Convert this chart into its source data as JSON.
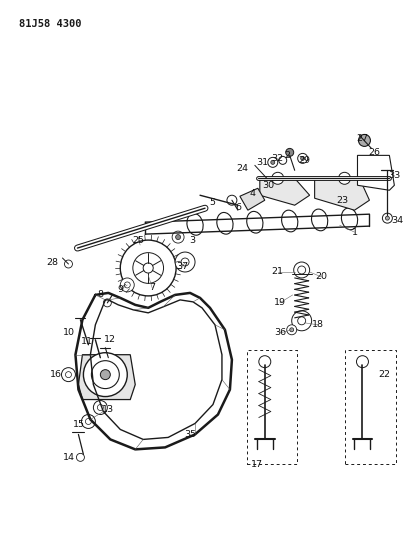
{
  "title_code": "81J58 4300",
  "background_color": "#ffffff",
  "line_color": "#1a1a1a",
  "label_color": "#111111",
  "figure_width": 4.12,
  "figure_height": 5.33,
  "dpi": 100
}
